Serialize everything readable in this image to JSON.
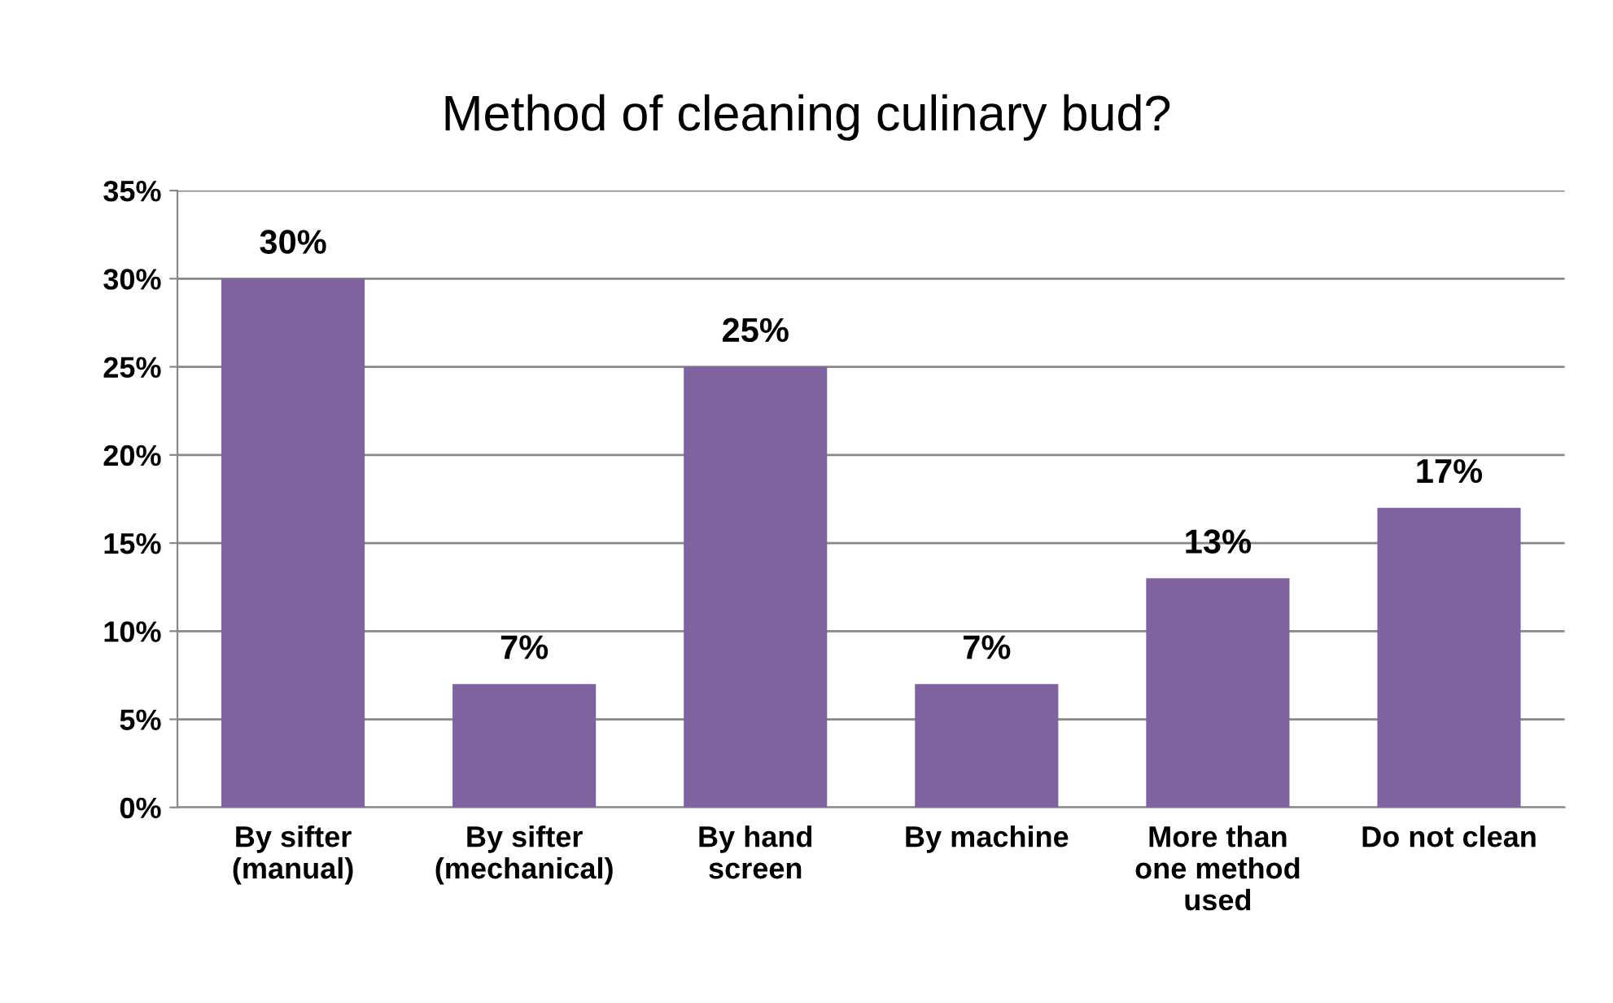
{
  "chart_data": {
    "type": "bar",
    "title": "Method of cleaning culinary bud?",
    "categories": [
      "By sifter\n(manual)",
      "By sifter\n(mechanical)",
      "By hand\nscreen",
      "By machine",
      "More than\none method\nused",
      "Do not clean"
    ],
    "values": [
      30,
      7,
      25,
      7,
      13,
      17
    ],
    "value_labels": [
      "30%",
      "7%",
      "25%",
      "7%",
      "13%",
      "17%"
    ],
    "color": "#7f63a1",
    "ylim": [
      0,
      35
    ],
    "yticks": [
      {
        "value": 0,
        "label": "0%"
      },
      {
        "value": 5,
        "label": "5%"
      },
      {
        "value": 10,
        "label": "10%"
      },
      {
        "value": 15,
        "label": "15%"
      },
      {
        "value": 20,
        "label": "20%"
      },
      {
        "value": 25,
        "label": "25%"
      },
      {
        "value": 30,
        "label": "30%"
      },
      {
        "value": 35,
        "label": "35%"
      }
    ],
    "grid": "y"
  }
}
